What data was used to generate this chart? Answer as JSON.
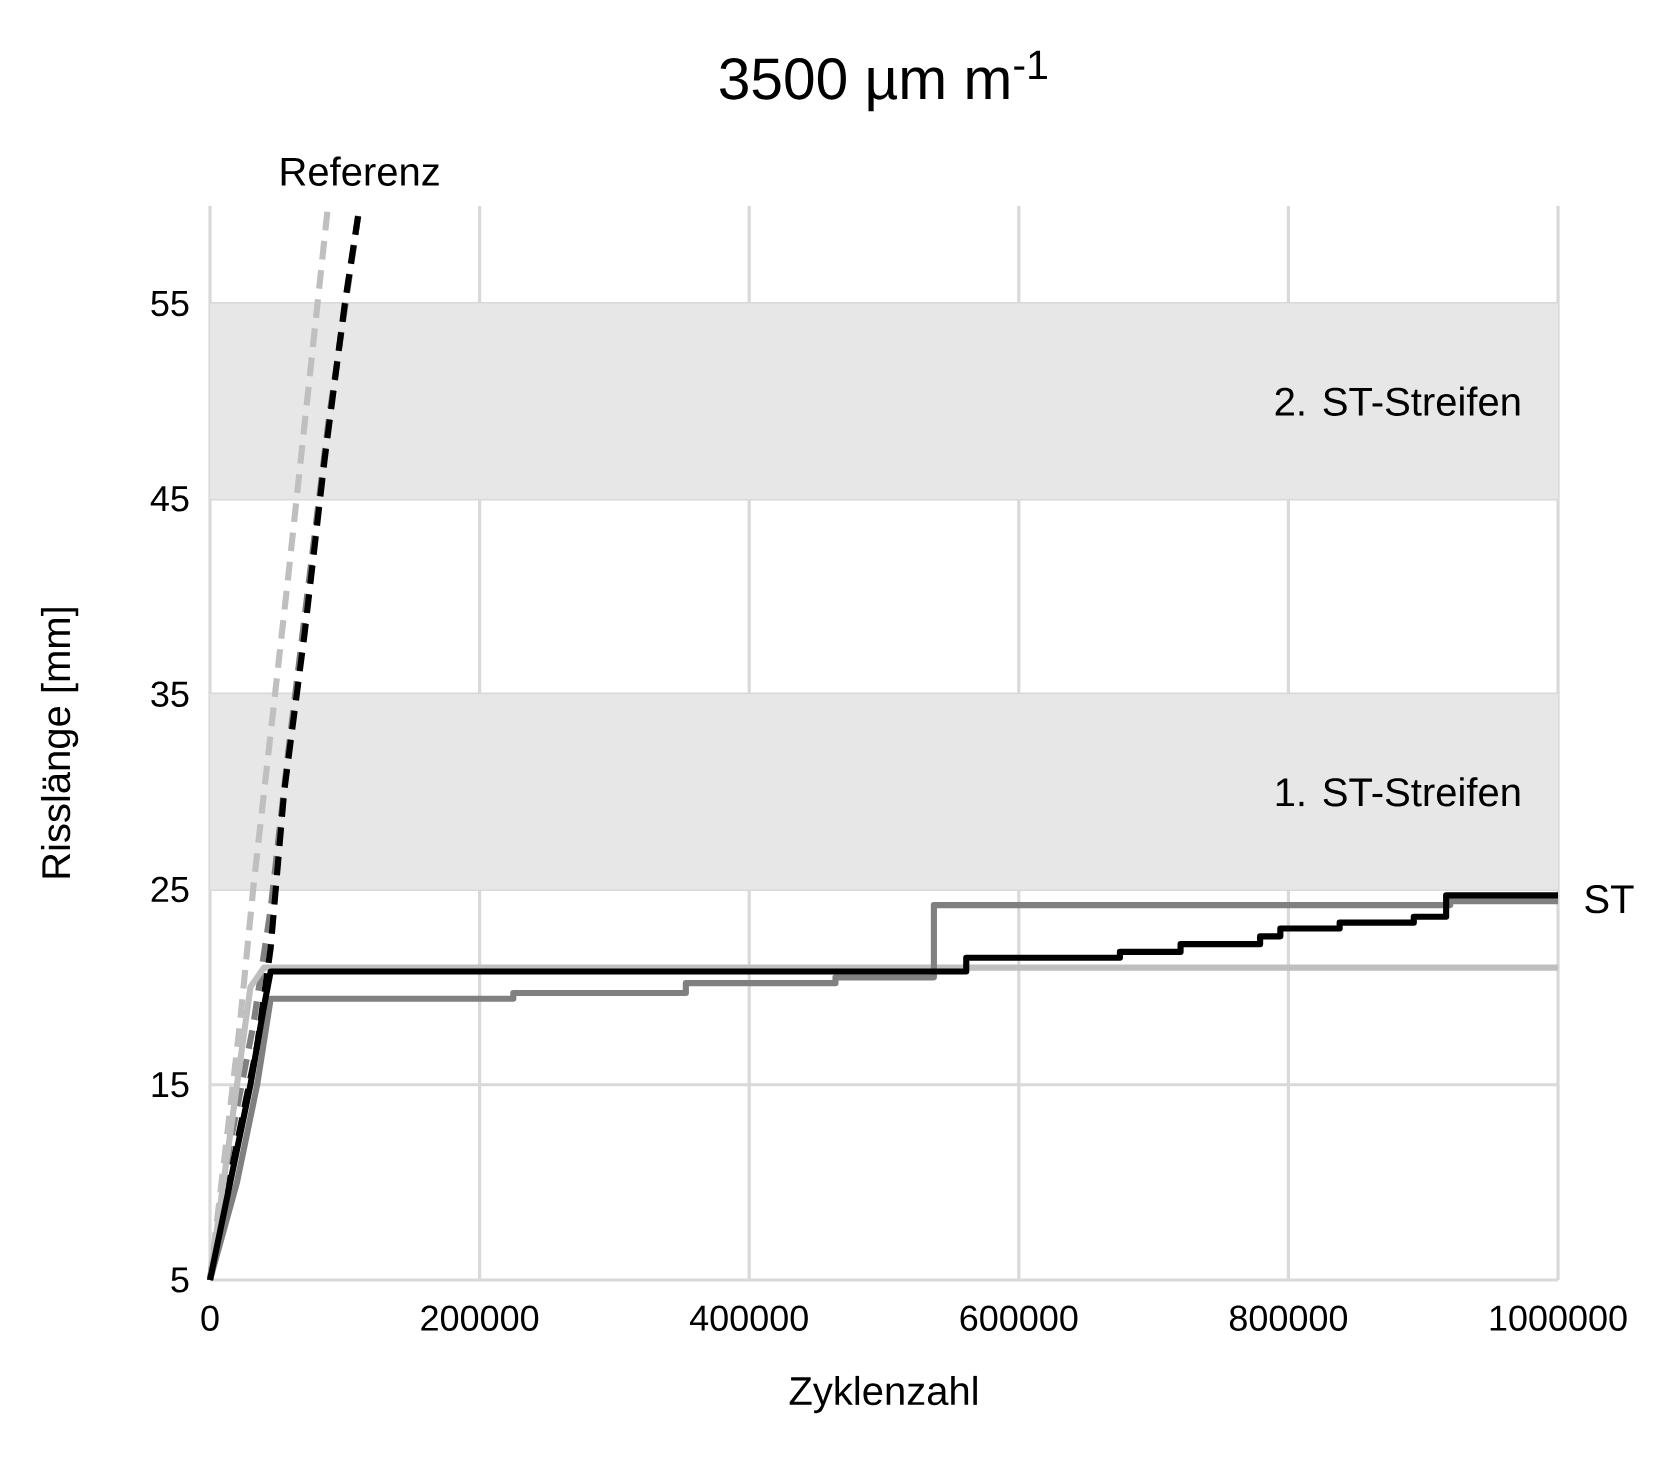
{
  "chart_data": {
    "type": "line",
    "title": "3500 µm m$^{-1}$",
    "xlabel": "Zyklenzahl",
    "ylabel": "Risslänge [mm]",
    "xlim": [
      0,
      1000000
    ],
    "ylim": [
      5,
      60
    ],
    "xticks": [
      0,
      200000,
      400000,
      600000,
      800000,
      1000000
    ],
    "yticks": [
      5,
      15,
      25,
      35,
      45,
      55
    ],
    "grid": true,
    "bands": [
      {
        "axis": "y",
        "from": 25,
        "to": 35,
        "label": "1. ST-Streifen",
        "color": "#e7e7e7"
      },
      {
        "axis": "y",
        "from": 45,
        "to": 55,
        "label": "2. ST-Streifen",
        "color": "#e7e7e7"
      }
    ],
    "annotations": [
      {
        "text": "Referenz",
        "x": 111000,
        "y": 60
      },
      {
        "text": "ST",
        "x": 1000000,
        "y": 24.5
      }
    ],
    "series": [
      {
        "color": "#bfbfbf",
        "line_style": "dashed",
        "x": [
          0,
          12000,
          22000,
          32000,
          45000,
          58000,
          72000,
          87500
        ],
        "values": [
          5,
          12,
          18,
          25,
          33,
          41,
          50,
          60
        ]
      },
      {
        "color": "#808080",
        "line_style": "dashed",
        "x": [
          0,
          15000,
          32000,
          45000,
          58000,
          72000,
          88000,
          111000
        ],
        "values": [
          5,
          12,
          18,
          24,
          32,
          40,
          49,
          60
        ]
      },
      {
        "color": "#000000",
        "line_style": "dashed",
        "x": [
          0,
          20000,
          35000,
          45000,
          55000,
          70000,
          85000,
          100000,
          111000
        ],
        "values": [
          5,
          12,
          17,
          22,
          30,
          38,
          47,
          55,
          60
        ]
      },
      {
        "color": "#bfbfbf",
        "line_style": "solid",
        "x": [
          0,
          10000,
          20000,
          30000,
          40000,
          1000000
        ],
        "values": [
          5,
          10,
          15,
          20,
          21.0,
          21.0
        ]
      },
      {
        "color": "#808080",
        "line_style": "solid",
        "x": [
          0,
          20000,
          35000,
          45000,
          225000,
          225000,
          353000,
          353000,
          464000,
          464000,
          537000,
          537000,
          920000,
          920000,
          1000000
        ],
        "values": [
          5,
          10,
          15,
          19.4,
          19.4,
          19.7,
          19.7,
          20.2,
          20.2,
          20.5,
          20.5,
          24.2,
          24.2,
          24.4,
          24.4
        ]
      },
      {
        "color": "#000000",
        "line_style": "solid",
        "x": [
          0,
          15000,
          30000,
          40000,
          45000,
          561000,
          561000,
          675000,
          675000,
          720000,
          720000,
          779000,
          779000,
          794000,
          794000,
          838000,
          838000,
          893000,
          893000,
          917000,
          917000,
          1000000
        ],
        "values": [
          5,
          10,
          15,
          19,
          20.8,
          20.8,
          21.5,
          21.5,
          21.8,
          21.8,
          22.2,
          22.2,
          22.6,
          22.6,
          23.0,
          23.0,
          23.3,
          23.3,
          23.6,
          23.6,
          24.7,
          24.7
        ]
      }
    ]
  }
}
